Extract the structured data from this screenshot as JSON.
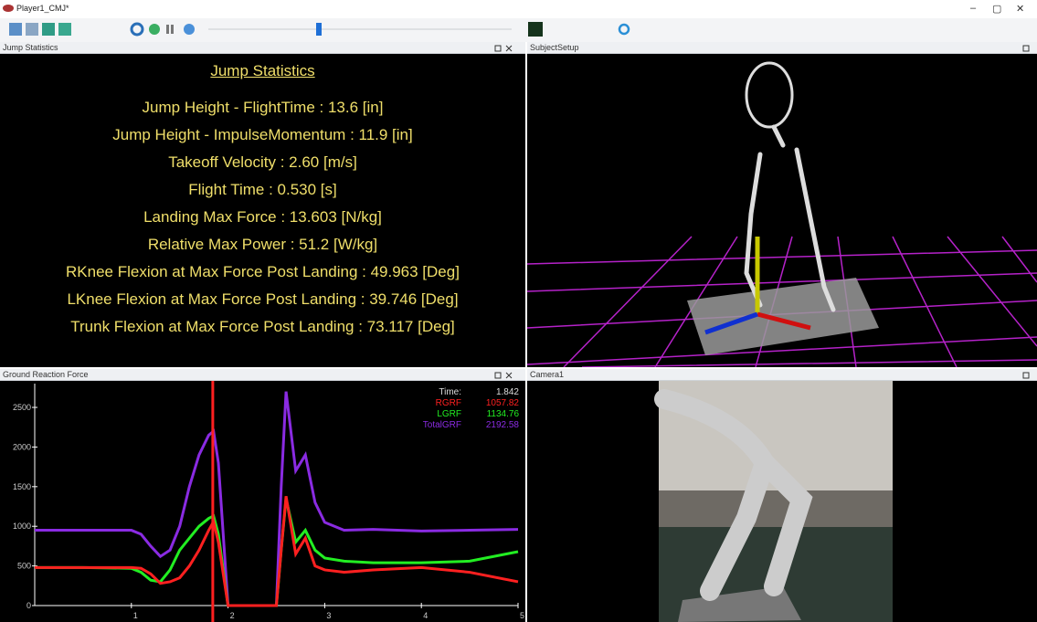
{
  "window": {
    "title": "Player1_CMJ*",
    "controls": [
      "–",
      "▢",
      "✕"
    ]
  },
  "panels": {
    "jump_statistics": {
      "header": "Jump Statistics",
      "title": "Jump Statistics",
      "lines": [
        "Jump Height - FlightTime : 13.6 [in]",
        "Jump Height - ImpulseMomentum : 11.9 [in]",
        "Takeoff Velocity : 2.60 [m/s]",
        "Flight Time : 0.530 [s]",
        "Landing Max Force : 13.603 [N/kg]",
        "Relative Max Power : 51.2 [W/kg]",
        "RKnee Flexion at Max Force Post Landing : 49.963 [Deg]",
        "LKnee Flexion at Max Force Post Landing : 39.746 [Deg]",
        "Trunk Flexion at Max Force Post Landing : 73.117 [Deg]"
      ]
    },
    "subject_setup": {
      "header": "SubjectSetup"
    },
    "camera": {
      "header": "Camera1"
    }
  },
  "chart_data": {
    "type": "line",
    "title": "Ground Reaction Force",
    "x": [
      0,
      0.5,
      1.0,
      1.1,
      1.2,
      1.3,
      1.4,
      1.5,
      1.6,
      1.7,
      1.8,
      1.85,
      1.9,
      2.0,
      2.5,
      2.55,
      2.6,
      2.7,
      2.8,
      2.9,
      3.0,
      3.2,
      3.5,
      4.0,
      4.5,
      5.0
    ],
    "series": [
      {
        "name": "TotalGRF",
        "color": "#8a2be2",
        "current": 2192.58,
        "values": [
          950,
          950,
          950,
          900,
          750,
          620,
          700,
          1000,
          1500,
          1900,
          2150,
          2200,
          1800,
          0,
          0,
          1500,
          2700,
          1700,
          1900,
          1300,
          1050,
          950,
          960,
          940,
          950,
          960
        ]
      },
      {
        "name": "LGRF",
        "color": "#22ee22",
        "current": 1134.76,
        "values": [
          480,
          480,
          470,
          420,
          320,
          300,
          450,
          700,
          850,
          1000,
          1100,
          1130,
          900,
          0,
          0,
          700,
          1350,
          800,
          950,
          700,
          600,
          560,
          540,
          540,
          560,
          680
        ]
      },
      {
        "name": "RGRF",
        "color": "#ff2020",
        "current": 1057.82,
        "values": [
          480,
          480,
          480,
          470,
          400,
          280,
          300,
          350,
          500,
          700,
          950,
          1060,
          800,
          0,
          0,
          700,
          1380,
          650,
          850,
          500,
          450,
          420,
          450,
          480,
          420,
          300
        ]
      }
    ],
    "readout": {
      "label": "Time:",
      "value": 1.842
    },
    "xlim": [
      0,
      5
    ],
    "xticks": [
      1,
      2,
      3,
      4,
      5
    ],
    "ylim": [
      0,
      2800
    ],
    "yticks": [
      0,
      500,
      1000,
      1500,
      2000,
      2500
    ]
  }
}
